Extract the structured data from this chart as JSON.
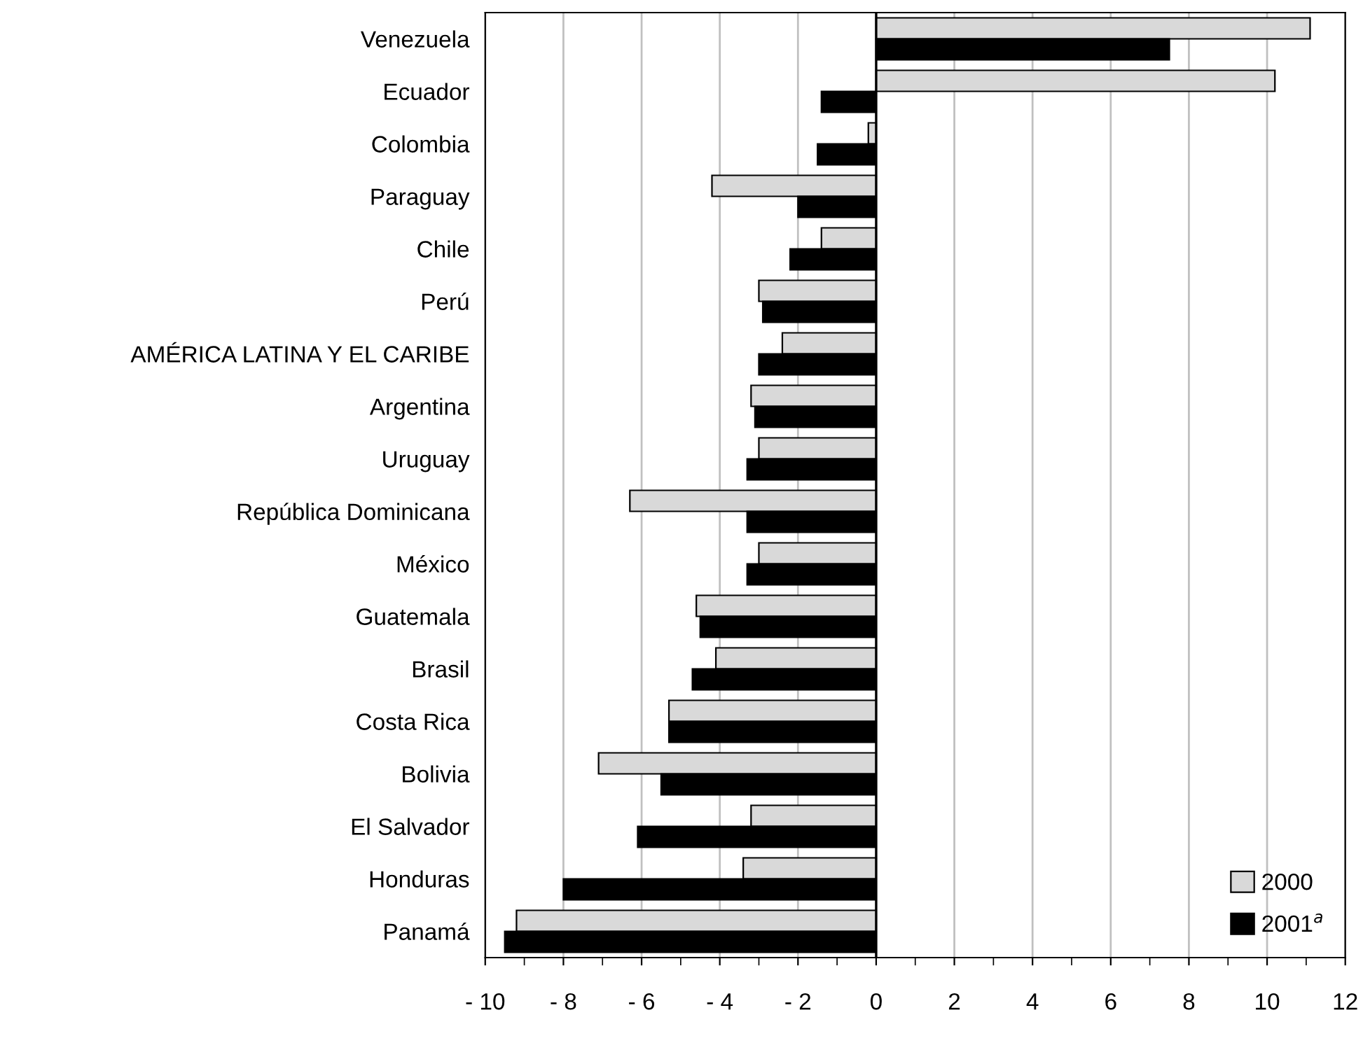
{
  "chart_data": {
    "type": "bar",
    "orientation": "horizontal",
    "categories": [
      "Venezuela",
      "Ecuador",
      "Colombia",
      "Paraguay",
      "Chile",
      "Perú",
      "AMÉRICA LATINA Y EL CARIBE",
      "Argentina",
      "Uruguay",
      "República Dominicana",
      "México",
      "Guatemala",
      "Brasil",
      "Costa Rica",
      "Bolivia",
      "El Salvador",
      "Honduras",
      "Panamá"
    ],
    "series": [
      {
        "name": "2000",
        "color": "#d9d9d9",
        "values": [
          11.1,
          10.2,
          -0.2,
          -4.2,
          -1.4,
          -3.0,
          -2.4,
          -3.2,
          -3.0,
          -6.3,
          -3.0,
          -4.6,
          -4.1,
          -5.3,
          -7.1,
          -3.2,
          -3.4,
          -9.2
        ]
      },
      {
        "name": "2001$^{a}$",
        "color": "#000000",
        "values": [
          7.5,
          -1.4,
          -1.5,
          -2.0,
          -2.2,
          -2.9,
          -3.0,
          -3.1,
          -3.3,
          -3.3,
          -3.3,
          -4.5,
          -4.7,
          -5.3,
          -5.5,
          -6.1,
          -8.0,
          -9.5
        ]
      }
    ],
    "xlim": [
      -10,
      12
    ],
    "xticks": [
      {
        "value": -10,
        "label": "- 10"
      },
      {
        "value": -9,
        "label": null
      },
      {
        "value": -8,
        "label": "- 8"
      },
      {
        "value": -7,
        "label": null
      },
      {
        "value": -6,
        "label": "- 6"
      },
      {
        "value": -5,
        "label": null
      },
      {
        "value": -4,
        "label": "- 4"
      },
      {
        "value": -3,
        "label": null
      },
      {
        "value": -2,
        "label": "- 2"
      },
      {
        "value": -1,
        "label": null
      },
      0,
      {
        "value": 1,
        "label": null
      },
      2,
      {
        "value": 3,
        "label": null
      },
      4,
      {
        "value": 5,
        "label": null
      },
      6,
      {
        "value": 7,
        "label": null
      },
      8,
      {
        "value": 9,
        "label": null
      },
      10,
      {
        "value": 11,
        "label": null
      },
      12
    ],
    "ref_lines": [
      {
        "axis": "x",
        "value": 0,
        "color": "#000000"
      }
    ],
    "grid": "x",
    "legend": "bottom right"
  }
}
